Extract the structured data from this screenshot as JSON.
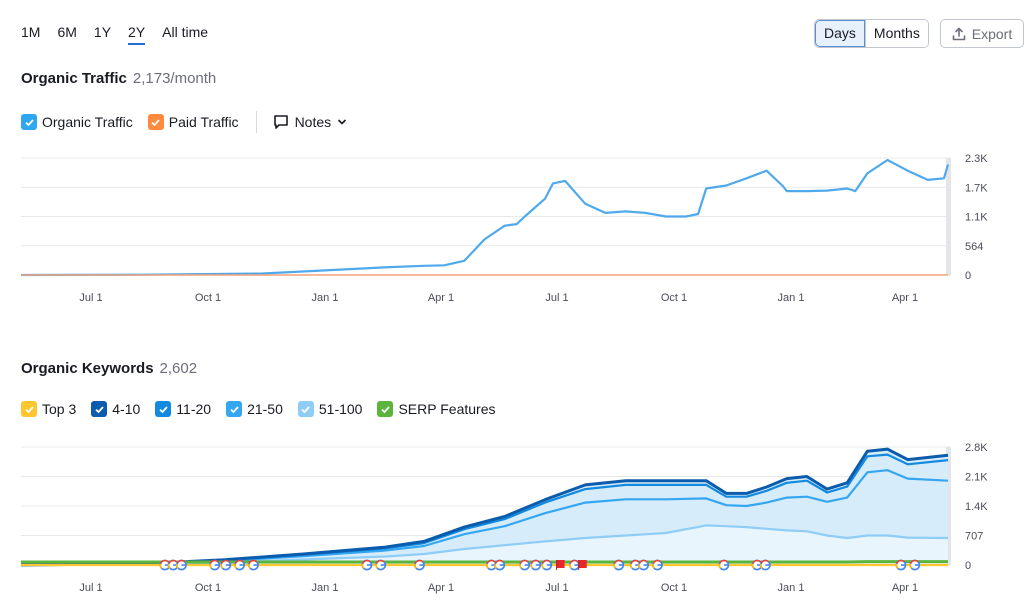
{
  "range_tabs": [
    "1M",
    "6M",
    "1Y",
    "2Y",
    "All time"
  ],
  "range_active": "2Y",
  "granularity": {
    "days": "Days",
    "months": "Months",
    "active": "Days"
  },
  "export_label": "Export",
  "traffic": {
    "title": "Organic Traffic",
    "value": "2,173/month",
    "legend": [
      {
        "label": "Organic Traffic",
        "color": "#2fa6f0",
        "checked": true
      },
      {
        "label": "Paid Traffic",
        "color": "#ff8a3d",
        "checked": true
      }
    ],
    "notes_label": "Notes"
  },
  "keywords": {
    "title": "Organic Keywords",
    "value": "2,602",
    "legend": [
      {
        "label": "Top 3",
        "color": "#ffc630",
        "checked": true
      },
      {
        "label": "4-10",
        "color": "#0b5cad",
        "checked": true
      },
      {
        "label": "11-20",
        "color": "#1389e0",
        "checked": true
      },
      {
        "label": "21-50",
        "color": "#35a7f0",
        "checked": true
      },
      {
        "label": "51-100",
        "color": "#8fcdf7",
        "checked": true
      },
      {
        "label": "SERP Features",
        "color": "#5bb53d",
        "checked": true
      }
    ]
  },
  "chart_data": [
    {
      "type": "line",
      "title": "Organic Traffic",
      "x_ticks": [
        "Jul 1",
        "Oct 1",
        "Jan 1",
        "Apr 1",
        "Jul 1",
        "Oct 1",
        "Jan 1",
        "Apr 1"
      ],
      "y_ticks": [
        "0",
        "564",
        "1.1K",
        "1.7K",
        "2.3K"
      ],
      "ylim": [
        0,
        2300
      ],
      "series": [
        {
          "name": "Organic Traffic",
          "color": "#4fa9eb",
          "x": [
            0,
            3,
            6,
            9,
            10,
            10.5,
            11,
            11.5,
            12,
            12.3,
            12.5,
            13,
            13.2,
            13.5,
            14,
            14.5,
            15,
            15.5,
            16,
            16.5,
            16.8,
            17,
            17.5,
            18,
            18.5,
            18.9,
            19,
            19.5,
            20,
            20.5,
            20.7,
            21,
            21.5,
            22,
            22.5,
            22.9,
            23
          ],
          "y": [
            0,
            5,
            30,
            150,
            180,
            190,
            280,
            700,
            970,
            1000,
            1150,
            1500,
            1800,
            1850,
            1400,
            1220,
            1250,
            1220,
            1150,
            1150,
            1200,
            1700,
            1760,
            1900,
            2050,
            1750,
            1650,
            1650,
            1660,
            1700,
            1650,
            2000,
            2260,
            2050,
            1870,
            1900,
            2173
          ]
        },
        {
          "name": "Paid Traffic",
          "color": "#f5a27a",
          "x": [
            0,
            23
          ],
          "y": [
            0,
            0
          ]
        }
      ]
    },
    {
      "type": "area",
      "title": "Organic Keywords",
      "x_ticks": [
        "Jul 1",
        "Oct 1",
        "Jan 1",
        "Apr 1",
        "Jul 1",
        "Oct 1",
        "Jan 1",
        "Apr 1"
      ],
      "y_ticks": [
        "0",
        "707",
        "1.4K",
        "2.1K",
        "2.8K"
      ],
      "ylim": [
        0,
        2800
      ],
      "x": [
        0,
        3,
        5,
        7,
        9,
        10,
        11,
        12,
        13,
        14,
        15,
        16,
        17,
        17.5,
        18,
        18.5,
        19,
        19.5,
        20,
        20.5,
        21,
        21.5,
        22,
        23
      ],
      "series": [
        {
          "name": "Top 3",
          "color": "#ffc630",
          "values": [
            0,
            0,
            0,
            0,
            0,
            0,
            0,
            0,
            0,
            0,
            0,
            0,
            0,
            0,
            0,
            0,
            0,
            0,
            0,
            0,
            0,
            0,
            0,
            0
          ]
        },
        {
          "name": "4-10",
          "color": "#0b5cad",
          "values": [
            0,
            30,
            120,
            260,
            420,
            560,
            900,
            1150,
            1550,
            1900,
            2000,
            2000,
            2000,
            1700,
            1700,
            1850,
            2050,
            2100,
            1800,
            1950,
            2700,
            2750,
            2500,
            2602
          ]
        },
        {
          "name": "11-20",
          "color": "#1389e0",
          "values": [
            0,
            28,
            110,
            240,
            390,
            520,
            850,
            1090,
            1480,
            1800,
            1900,
            1900,
            1900,
            1620,
            1620,
            1760,
            1950,
            2000,
            1720,
            1860,
            2580,
            2620,
            2390,
            2490
          ]
        },
        {
          "name": "21-50",
          "color": "#35a7f0",
          "values": [
            0,
            25,
            95,
            210,
            340,
            450,
            730,
            920,
            1230,
            1480,
            1560,
            1560,
            1580,
            1420,
            1400,
            1480,
            1600,
            1620,
            1500,
            1600,
            2200,
            2250,
            2050,
            2000
          ]
        },
        {
          "name": "51-100",
          "color": "#8fcdf7",
          "values": [
            0,
            18,
            60,
            130,
            200,
            260,
            380,
            470,
            560,
            640,
            700,
            760,
            940,
            920,
            900,
            860,
            820,
            800,
            700,
            640,
            700,
            700,
            650,
            640
          ]
        },
        {
          "name": "SERP Features",
          "color": "#5bb53d",
          "values": [
            70,
            70,
            70,
            70,
            70,
            70,
            70,
            70,
            70,
            70,
            70,
            70,
            70,
            70,
            70,
            70,
            70,
            70,
            70,
            70,
            80,
            80,
            80,
            80
          ]
        }
      ],
      "markers": {
        "google_x": [
          5.2,
          5.5,
          5.8,
          7.0,
          7.4,
          7.9,
          8.4,
          12.5,
          13.0,
          14.4,
          17.0,
          17.3,
          18.2,
          18.6,
          19.0,
          20.0,
          21.6,
          22.2,
          22.5,
          23.0,
          25.4,
          26.6,
          26.9,
          31.8,
          32.3
        ],
        "flag_x": [
          19.5,
          20.3
        ]
      }
    }
  ]
}
